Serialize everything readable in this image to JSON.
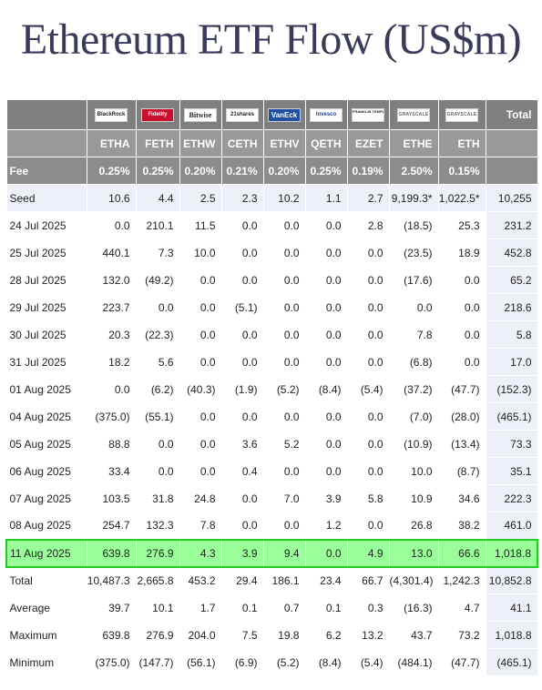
{
  "title": "Ethereum ETF Flow (US$m)",
  "header": {
    "total_label": "Total",
    "fee_label": "Fee",
    "logos": [
      {
        "icon": "blackrock-logo",
        "text": "BlackRock"
      },
      {
        "icon": "fidelity-logo",
        "text": "Fidelity"
      },
      {
        "icon": "bitwise-logo",
        "text": "Bitwise"
      },
      {
        "icon": "21shares-logo",
        "text": "21shares"
      },
      {
        "icon": "vaneck-logo",
        "text": "VanEck"
      },
      {
        "icon": "invesco-logo",
        "text": "Invesco"
      },
      {
        "icon": "franklin-templeton-logo",
        "text": "FRANKLIN TEMPLETON"
      },
      {
        "icon": "grayscale-logo",
        "text": "GRAYSCALE"
      },
      {
        "icon": "grayscale-logo",
        "text": "GRAYSCALE"
      }
    ],
    "tickers": [
      "ETHA",
      "FETH",
      "ETHW",
      "CETH",
      "ETHV",
      "QETH",
      "EZET",
      "ETHE",
      "ETH"
    ],
    "fees": [
      "0.25%",
      "0.25%",
      "0.20%",
      "0.21%",
      "0.20%",
      "0.25%",
      "0.19%",
      "2.50%",
      "0.15%"
    ]
  },
  "rows": [
    {
      "label": "Seed",
      "values": [
        "10.6",
        "4.4",
        "2.5",
        "2.3",
        "10.2",
        "1.1",
        "2.7",
        "9,199.3*",
        "1,022.5*",
        "10,255"
      ]
    },
    {
      "label": "24 Jul 2025",
      "values": [
        "0.0",
        "210.1",
        "11.5",
        "0.0",
        "0.0",
        "0.0",
        "2.8",
        "(18.5)",
        "25.3",
        "231.2"
      ]
    },
    {
      "label": "25 Jul 2025",
      "values": [
        "440.1",
        "7.3",
        "10.0",
        "0.0",
        "0.0",
        "0.0",
        "0.0",
        "(23.5)",
        "18.9",
        "452.8"
      ]
    },
    {
      "label": "28 Jul 2025",
      "values": [
        "132.0",
        "(49.2)",
        "0.0",
        "0.0",
        "0.0",
        "0.0",
        "0.0",
        "(17.6)",
        "0.0",
        "65.2"
      ]
    },
    {
      "label": "29 Jul 2025",
      "values": [
        "223.7",
        "0.0",
        "0.0",
        "(5.1)",
        "0.0",
        "0.0",
        "0.0",
        "0.0",
        "0.0",
        "218.6"
      ]
    },
    {
      "label": "30 Jul 2025",
      "values": [
        "20.3",
        "(22.3)",
        "0.0",
        "0.0",
        "0.0",
        "0.0",
        "0.0",
        "7.8",
        "0.0",
        "5.8"
      ]
    },
    {
      "label": "31 Jul 2025",
      "values": [
        "18.2",
        "5.6",
        "0.0",
        "0.0",
        "0.0",
        "0.0",
        "0.0",
        "(6.8)",
        "0.0",
        "17.0"
      ]
    },
    {
      "label": "01 Aug 2025",
      "values": [
        "0.0",
        "(6.2)",
        "(40.3)",
        "(1.9)",
        "(5.2)",
        "(8.4)",
        "(5.4)",
        "(37.2)",
        "(47.7)",
        "(152.3)"
      ]
    },
    {
      "label": "04 Aug 2025",
      "values": [
        "(375.0)",
        "(55.1)",
        "0.0",
        "0.0",
        "0.0",
        "0.0",
        "0.0",
        "(7.0)",
        "(28.0)",
        "(465.1)"
      ]
    },
    {
      "label": "05 Aug 2025",
      "values": [
        "88.8",
        "0.0",
        "0.0",
        "3.6",
        "5.2",
        "0.0",
        "0.0",
        "(10.9)",
        "(13.4)",
        "73.3"
      ]
    },
    {
      "label": "06 Aug 2025",
      "values": [
        "33.4",
        "0.0",
        "0.0",
        "0.4",
        "0.0",
        "0.0",
        "0.0",
        "10.0",
        "(8.7)",
        "35.1"
      ]
    },
    {
      "label": "07 Aug 2025",
      "values": [
        "103.5",
        "31.8",
        "24.8",
        "0.0",
        "7.0",
        "3.9",
        "5.8",
        "10.9",
        "34.6",
        "222.3"
      ]
    },
    {
      "label": "08 Aug 2025",
      "values": [
        "254.7",
        "132.3",
        "7.8",
        "0.0",
        "0.0",
        "1.2",
        "0.0",
        "26.8",
        "38.2",
        "461.0"
      ]
    },
    {
      "label": "11 Aug 2025",
      "values": [
        "639.8",
        "276.9",
        "4.3",
        "3.9",
        "9.4",
        "0.0",
        "4.9",
        "13.0",
        "66.6",
        "1,018.8"
      ],
      "highlight": true
    },
    {
      "label": "Total",
      "values": [
        "10,487.3",
        "2,665.8",
        "453.2",
        "29.4",
        "186.1",
        "23.4",
        "66.7",
        "(4,301.4)",
        "1,242.3",
        "10,852.8"
      ]
    },
    {
      "label": "Average",
      "values": [
        "39.7",
        "10.1",
        "1.7",
        "0.1",
        "0.7",
        "0.1",
        "0.3",
        "(16.3)",
        "4.7",
        "41.1"
      ]
    },
    {
      "label": "Maximum",
      "values": [
        "639.8",
        "276.9",
        "204.0",
        "7.5",
        "19.8",
        "6.2",
        "13.2",
        "43.7",
        "73.2",
        "1,018.8"
      ]
    },
    {
      "label": "Minimum",
      "values": [
        "(375.0)",
        "(147.7)",
        "(56.1)",
        "(6.9)",
        "(5.2)",
        "(8.4)",
        "(5.4)",
        "(484.1)",
        "(47.7)",
        "(465.1)"
      ]
    }
  ],
  "colors": {
    "negative": "#cc0000",
    "highlight": "#99ff99",
    "highlight_border": "#22cc22",
    "header": "#7f7f7f",
    "row_shade": "#eef0f7",
    "title": "#3a3a5a"
  }
}
